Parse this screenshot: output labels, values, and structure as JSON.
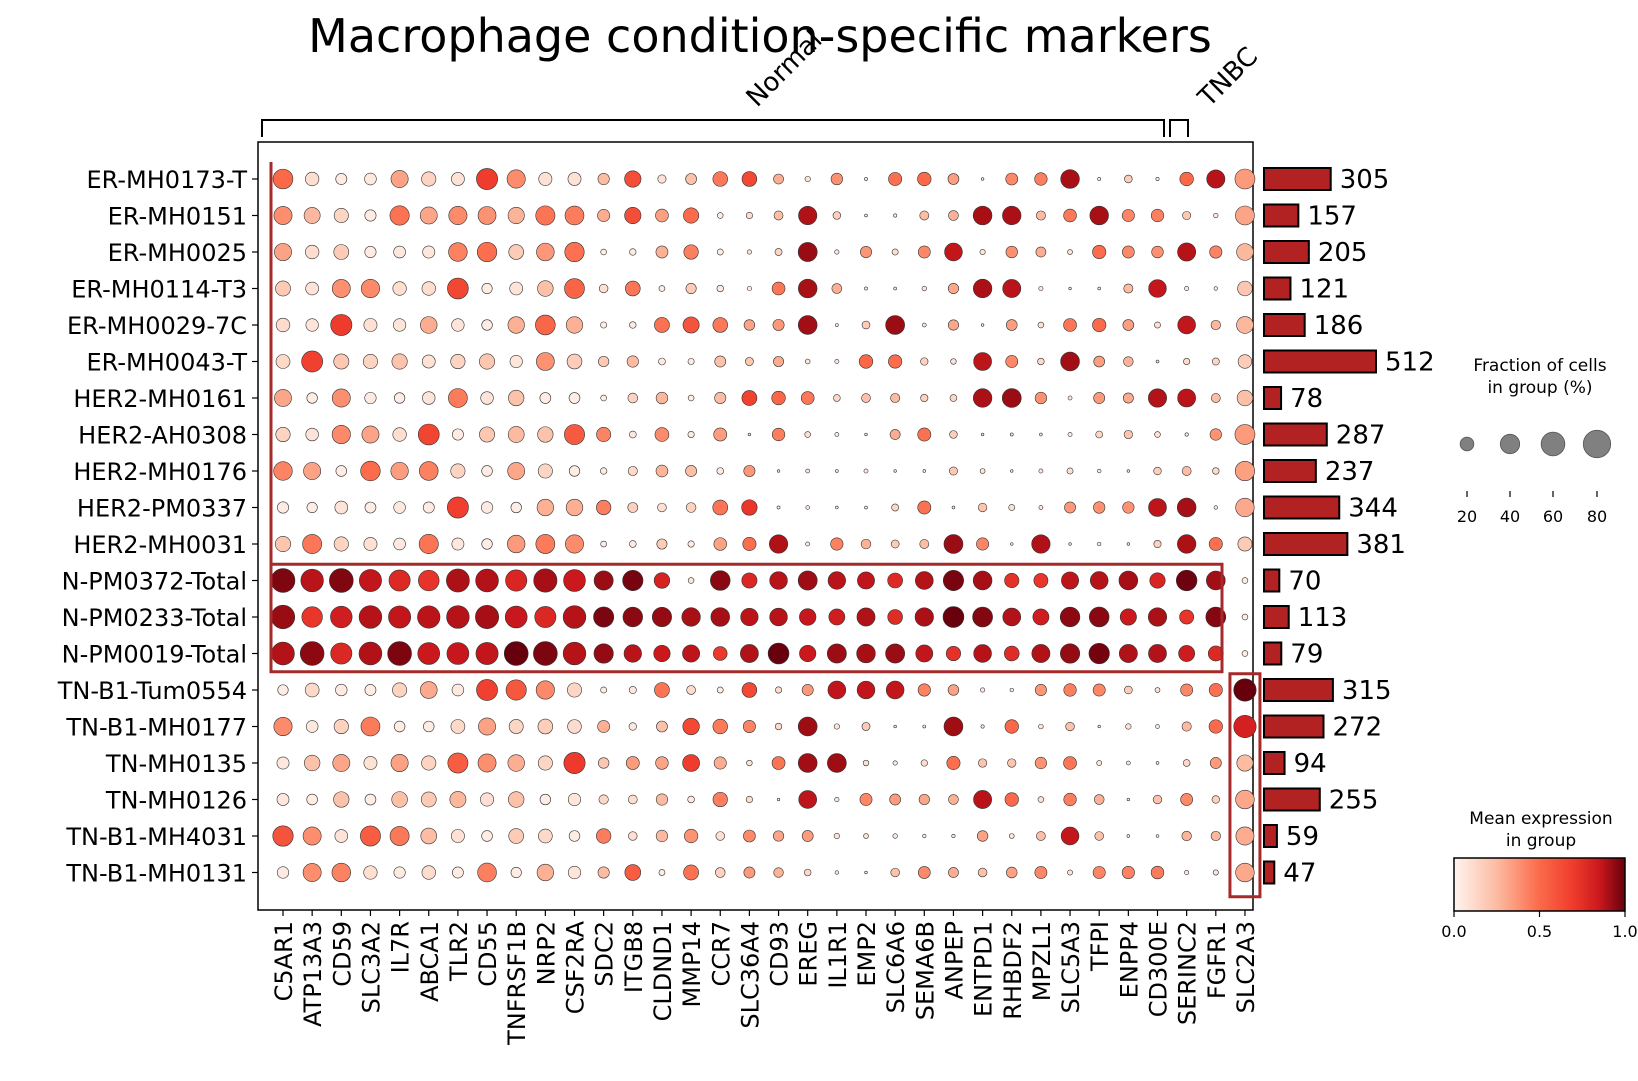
{
  "chart_data": {
    "type": "dotplot",
    "title": "Macrophage condition-specific markers",
    "groups": [
      "ER-MH0173-T",
      "ER-MH0151",
      "ER-MH0025",
      "ER-MH0114-T3",
      "ER-MH0029-7C",
      "ER-MH0043-T",
      "HER2-MH0161",
      "HER2-AH0308",
      "HER2-MH0176",
      "HER2-PM0337",
      "HER2-MH0031",
      "N-PM0372-Total",
      "N-PM0233-Total",
      "N-PM0019-Total",
      "TN-B1-Tum0554",
      "TN-B1-MH0177",
      "TN-MH0135",
      "TN-MH0126",
      "TN-B1-MH4031",
      "TN-B1-MH0131"
    ],
    "genes": [
      "C5AR1",
      "ATP13A3",
      "CD59",
      "SLC3A2",
      "IL7R",
      "ABCA1",
      "TLR2",
      "CD55",
      "TNFRSF1B",
      "NRP2",
      "CSF2RA",
      "SDC2",
      "ITGB8",
      "CLDND1",
      "MMP14",
      "CCR7",
      "SLC36A4",
      "CD93",
      "EREG",
      "IL1R1",
      "EMP2",
      "SLC6A6",
      "SEMA6B",
      "ANPEP",
      "ENTPD1",
      "RHBDF2",
      "MPZL1",
      "SLC5A3",
      "TFPI",
      "ENPP4",
      "CD300E",
      "SERINC2",
      "FGFR1",
      "SLC2A3"
    ],
    "gene_groups": [
      {
        "label": "Normal",
        "start": 0,
        "end": 32
      },
      {
        "label": "TNBC",
        "start": 33,
        "end": 33
      }
    ],
    "cell_counts": [
      305,
      157,
      205,
      121,
      186,
      512,
      78,
      287,
      237,
      344,
      381,
      70,
      113,
      79,
      315,
      272,
      94,
      255,
      59,
      47
    ],
    "highlight_boxes": [
      {
        "rows": [
          11,
          13
        ],
        "cols": [
          0,
          32
        ]
      },
      {
        "rows": [
          14,
          19
        ],
        "cols": [
          33,
          33
        ]
      },
      {
        "rows": [
          0,
          13
        ],
        "cols": [
          0,
          0
        ]
      }
    ],
    "size_legend": {
      "title": "Fraction of cells\nin group (%)",
      "values": [
        20,
        40,
        60,
        80
      ]
    },
    "color_legend": {
      "title": "Mean expression\nin group",
      "ticks": [
        0.0,
        0.5,
        1.0
      ],
      "tick_labels": [
        "0.0",
        "0.5",
        "1.0"
      ],
      "colormap": "Reds"
    },
    "colors": {
      "bar_fill": "#b22222",
      "highlight_box": "#a52a2a"
    }
  }
}
